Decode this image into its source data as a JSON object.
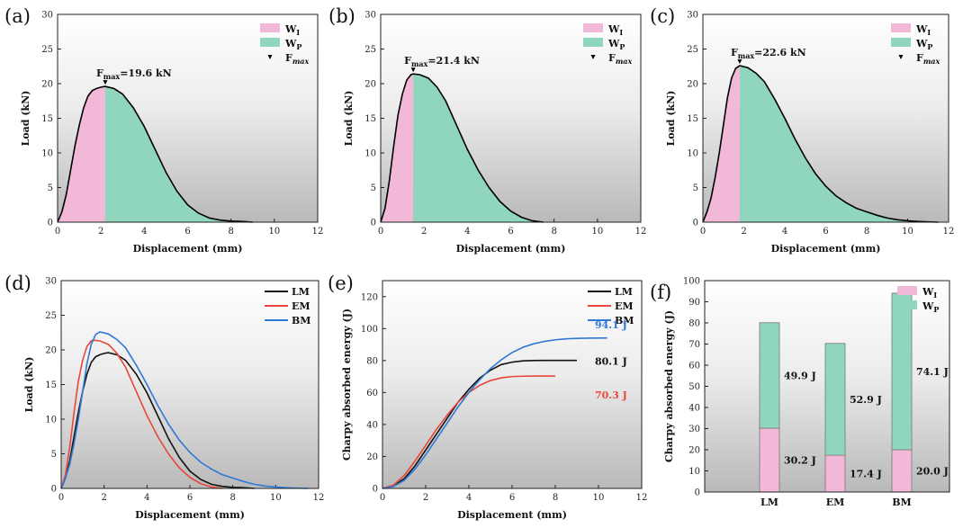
{
  "chart_data": [
    {
      "panel": "(a)",
      "type": "area",
      "xlabel": "Displacement (mm)",
      "ylabel": "Load (kN)",
      "xlim": [
        0,
        12
      ],
      "ylim": [
        0,
        30
      ],
      "xticks": [
        0,
        2,
        4,
        6,
        8,
        10,
        12
      ],
      "yticks": [
        0,
        5,
        10,
        15,
        20,
        25,
        30
      ],
      "split_x": 2.2,
      "legend": [
        "W",
        "W",
        "F"
      ],
      "legend_subs": [
        "I",
        "P",
        "max"
      ],
      "legend_position": "top-right",
      "colors": {
        "wi": "#f2b8d8",
        "wp": "#8fd6bc",
        "line": "#000000"
      },
      "annotation": {
        "main": "F",
        "sub": "max",
        "text": "=19.6 kN",
        "x": 2.2,
        "y": 19.6
      },
      "x": [
        0,
        0.2,
        0.4,
        0.6,
        0.8,
        1.0,
        1.2,
        1.4,
        1.6,
        1.8,
        2.0,
        2.2,
        2.6,
        3.0,
        3.5,
        4.0,
        4.5,
        5.0,
        5.5,
        6.0,
        6.5,
        7.0,
        7.5,
        8.0,
        8.5,
        9.0
      ],
      "y": [
        0,
        1.5,
        4.0,
        7.5,
        11.0,
        14.0,
        16.5,
        18.2,
        19.0,
        19.3,
        19.5,
        19.6,
        19.3,
        18.5,
        16.5,
        13.8,
        10.5,
        7.2,
        4.5,
        2.5,
        1.3,
        0.6,
        0.3,
        0.15,
        0.1,
        0
      ]
    },
    {
      "panel": "(b)",
      "type": "area",
      "xlabel": "Displacement (mm)",
      "ylabel": "Load (kN)",
      "xlim": [
        0,
        12
      ],
      "ylim": [
        0,
        30
      ],
      "xticks": [
        0,
        2,
        4,
        6,
        8,
        10,
        12
      ],
      "yticks": [
        0,
        5,
        10,
        15,
        20,
        25,
        30
      ],
      "split_x": 1.5,
      "legend": [
        "W",
        "W",
        "F"
      ],
      "legend_subs": [
        "I",
        "P",
        "max"
      ],
      "legend_position": "top-right",
      "colors": {
        "wi": "#f2b8d8",
        "wp": "#8fd6bc",
        "line": "#000000"
      },
      "annotation": {
        "main": "F",
        "sub": "max",
        "text": "=21.4 kN",
        "x": 1.5,
        "y": 21.4
      },
      "x": [
        0,
        0.2,
        0.4,
        0.6,
        0.8,
        1.0,
        1.2,
        1.4,
        1.5,
        1.8,
        2.2,
        2.6,
        3.0,
        3.5,
        4.0,
        4.5,
        5.0,
        5.5,
        6.0,
        6.5,
        7.0,
        7.5
      ],
      "y": [
        0,
        2.0,
        6.0,
        11.0,
        15.5,
        18.5,
        20.5,
        21.3,
        21.4,
        21.3,
        20.8,
        19.5,
        17.5,
        14.0,
        10.5,
        7.5,
        5.0,
        3.0,
        1.6,
        0.7,
        0.2,
        0
      ]
    },
    {
      "panel": "(c)",
      "type": "area",
      "xlabel": "Displacement (mm)",
      "ylabel": "Load (kN)",
      "xlim": [
        0,
        12
      ],
      "ylim": [
        0,
        30
      ],
      "xticks": [
        0,
        2,
        4,
        6,
        8,
        10,
        12
      ],
      "yticks": [
        0,
        5,
        10,
        15,
        20,
        25,
        30
      ],
      "split_x": 1.8,
      "legend": [
        "W",
        "W",
        "F"
      ],
      "legend_subs": [
        "I",
        "P",
        "max"
      ],
      "legend_position": "top-right",
      "colors": {
        "wi": "#f2b8d8",
        "wp": "#8fd6bc",
        "line": "#000000"
      },
      "annotation": {
        "main": "F",
        "sub": "max",
        "text": "=22.6 kN",
        "x": 1.8,
        "y": 22.6
      },
      "x": [
        0,
        0.2,
        0.4,
        0.6,
        0.8,
        1.0,
        1.2,
        1.4,
        1.6,
        1.8,
        2.2,
        2.6,
        3.0,
        3.5,
        4.0,
        4.5,
        5.0,
        5.5,
        6.0,
        6.5,
        7.0,
        7.5,
        8.0,
        8.5,
        9.0,
        9.5,
        10.0,
        10.5,
        11.0,
        11.5
      ],
      "y": [
        0,
        1.5,
        3.5,
        6.5,
        10.0,
        14.0,
        18.0,
        20.8,
        22.2,
        22.6,
        22.3,
        21.5,
        20.3,
        17.8,
        15.0,
        12.0,
        9.3,
        7.0,
        5.2,
        3.8,
        2.8,
        2.0,
        1.5,
        1.0,
        0.6,
        0.35,
        0.2,
        0.1,
        0.05,
        0
      ]
    },
    {
      "panel": "(d)",
      "type": "line",
      "xlabel": "Displacement (mm)",
      "ylabel": "Load (kN)",
      "xlim": [
        0,
        12
      ],
      "ylim": [
        0,
        30
      ],
      "xticks": [
        0,
        2,
        4,
        6,
        8,
        10,
        12
      ],
      "yticks": [
        0,
        5,
        10,
        15,
        20,
        25,
        30
      ],
      "legend_position": "top-right",
      "series": [
        {
          "name": "LM",
          "color": "#111111",
          "x": [
            0,
            0.2,
            0.4,
            0.6,
            0.8,
            1.0,
            1.2,
            1.4,
            1.6,
            1.8,
            2.0,
            2.2,
            2.6,
            3.0,
            3.5,
            4.0,
            4.5,
            5.0,
            5.5,
            6.0,
            6.5,
            7.0,
            7.5,
            8.0,
            8.5,
            9.0
          ],
          "y": [
            0,
            1.5,
            4.0,
            7.5,
            11.0,
            14.0,
            16.5,
            18.2,
            19.0,
            19.3,
            19.5,
            19.6,
            19.3,
            18.5,
            16.5,
            13.8,
            10.5,
            7.2,
            4.5,
            2.5,
            1.3,
            0.6,
            0.3,
            0.15,
            0.1,
            0
          ]
        },
        {
          "name": "EM",
          "color": "#e8463c",
          "x": [
            0,
            0.2,
            0.4,
            0.6,
            0.8,
            1.0,
            1.2,
            1.4,
            1.5,
            1.8,
            2.2,
            2.6,
            3.0,
            3.5,
            4.0,
            4.5,
            5.0,
            5.5,
            6.0,
            6.5,
            7.0,
            7.5
          ],
          "y": [
            0,
            2.0,
            6.0,
            11.0,
            15.5,
            18.5,
            20.5,
            21.3,
            21.4,
            21.3,
            20.8,
            19.5,
            17.5,
            14.0,
            10.5,
            7.5,
            5.0,
            3.0,
            1.6,
            0.7,
            0.2,
            0
          ]
        },
        {
          "name": "BM",
          "color": "#2f78d6",
          "x": [
            0,
            0.2,
            0.4,
            0.6,
            0.8,
            1.0,
            1.2,
            1.4,
            1.6,
            1.8,
            2.2,
            2.6,
            3.0,
            3.5,
            4.0,
            4.5,
            5.0,
            5.5,
            6.0,
            6.5,
            7.0,
            7.5,
            8.0,
            8.5,
            9.0,
            9.5,
            10.0,
            10.5,
            11.0,
            11.5
          ],
          "y": [
            0,
            1.5,
            3.5,
            6.5,
            10.0,
            14.0,
            18.0,
            20.8,
            22.2,
            22.6,
            22.3,
            21.5,
            20.3,
            17.8,
            15.0,
            12.0,
            9.3,
            7.0,
            5.2,
            3.8,
            2.8,
            2.0,
            1.5,
            1.0,
            0.6,
            0.35,
            0.2,
            0.1,
            0.05,
            0
          ]
        }
      ]
    },
    {
      "panel": "(e)",
      "type": "line",
      "xlabel": "Displacement (mm)",
      "ylabel": "Charpy absorbed energy (J)",
      "xlim": [
        0,
        12
      ],
      "ylim": [
        0,
        130
      ],
      "xticks": [
        0,
        2,
        4,
        6,
        8,
        10,
        12
      ],
      "yticks": [
        0,
        20,
        40,
        60,
        80,
        100,
        120
      ],
      "legend_position": "top-right",
      "series": [
        {
          "name": "LM",
          "color": "#111111",
          "end_label": "80.1 J",
          "x": [
            0,
            0.5,
            1.0,
            1.5,
            2.0,
            2.5,
            3.0,
            3.5,
            4.0,
            4.5,
            5.0,
            5.5,
            6.0,
            6.5,
            7.0,
            7.5,
            8.0,
            8.5,
            9.0
          ],
          "y": [
            0,
            1.5,
            6,
            14,
            24,
            34,
            44,
            54,
            62,
            69,
            74,
            77.5,
            79,
            79.8,
            80.0,
            80.1,
            80.1,
            80.1,
            80.1
          ]
        },
        {
          "name": "EM",
          "color": "#e8463c",
          "end_label": "70.3 J",
          "x": [
            0,
            0.5,
            1.0,
            1.5,
            2.0,
            2.5,
            3.0,
            3.5,
            4.0,
            4.5,
            5.0,
            5.5,
            6.0,
            6.5,
            7.0,
            7.5,
            8.0
          ],
          "y": [
            0,
            2,
            8,
            17,
            27,
            37,
            46,
            54,
            60,
            64.5,
            67.5,
            69.2,
            70.0,
            70.2,
            70.3,
            70.3,
            70.3
          ]
        },
        {
          "name": "BM",
          "color": "#2f78d6",
          "end_label": "94.1 J",
          "x": [
            0,
            0.5,
            1.0,
            1.5,
            2.0,
            2.5,
            3.0,
            3.5,
            4.0,
            4.5,
            5.0,
            5.5,
            6.0,
            6.5,
            7.0,
            7.5,
            8.0,
            8.5,
            9.0,
            9.5,
            10.0,
            10.4
          ],
          "y": [
            0,
            1.2,
            5,
            12,
            21,
            31,
            41,
            51,
            60,
            68,
            75,
            80.5,
            85,
            88.3,
            90.5,
            92,
            93,
            93.6,
            93.9,
            94.0,
            94.1,
            94.1
          ]
        }
      ]
    },
    {
      "panel": "(f)",
      "type": "bar",
      "stacked": true,
      "xlabel": "",
      "ylabel": "Charpy absorbed energy (J)",
      "ylim": [
        0,
        100
      ],
      "yticks": [
        0,
        10,
        20,
        30,
        40,
        50,
        60,
        70,
        80,
        90,
        100
      ],
      "categories": [
        "LM",
        "EM",
        "BM"
      ],
      "legend": [
        "W",
        "W"
      ],
      "legend_subs": [
        "I",
        "P"
      ],
      "legend_position": "top-right",
      "series": [
        {
          "name": "WI",
          "color": "#f2b8d8",
          "values": [
            30.2,
            17.4,
            20.0
          ],
          "labels": [
            "30.2 J",
            "17.4 J",
            "20.0 J"
          ]
        },
        {
          "name": "WP",
          "color": "#8fd6bc",
          "values": [
            49.9,
            52.9,
            74.1
          ],
          "labels": [
            "49.9 J",
            "52.9 J",
            "74.1 J"
          ]
        }
      ]
    }
  ]
}
